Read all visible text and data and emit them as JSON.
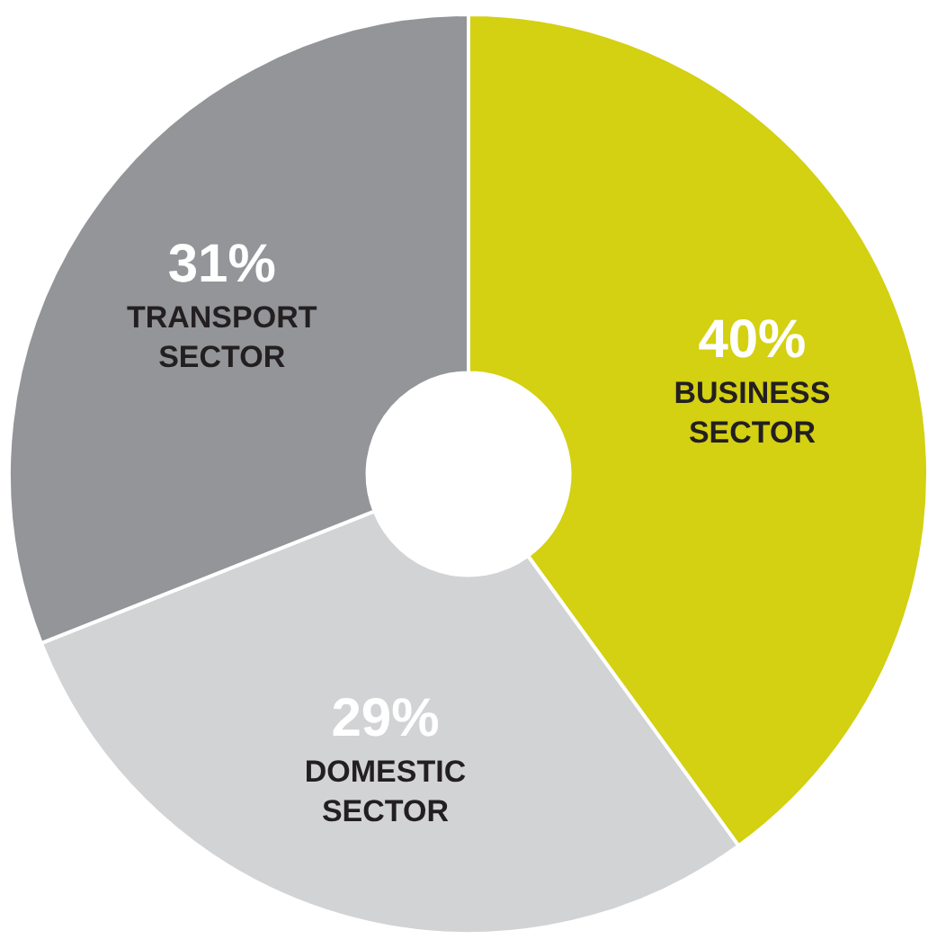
{
  "chart_data": {
    "type": "donut",
    "categories": [
      "BUSINESS SECTOR",
      "DOMESTIC SECTOR",
      "TRANSPORT SECTOR"
    ],
    "values": [
      40,
      29,
      31
    ],
    "value_labels": [
      "40%",
      "29%",
      "31%"
    ],
    "colors": [
      "#d4d012",
      "#d2d3d5",
      "#939598"
    ],
    "legend": false
  }
}
